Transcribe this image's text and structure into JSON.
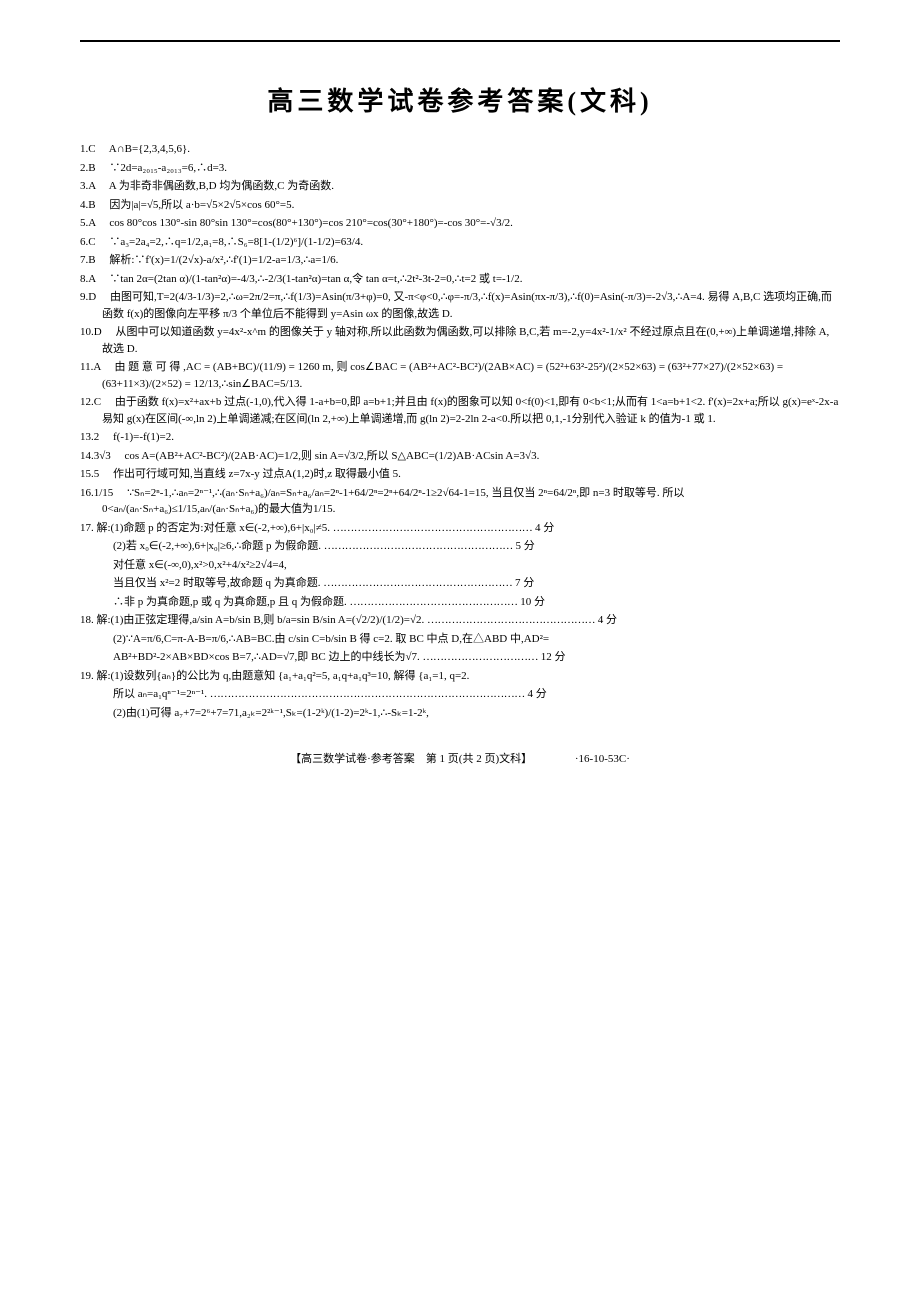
{
  "rule_color": "#000000",
  "title": "高三数学试卷参考答案(文科)",
  "questions": [
    {
      "n": "1.C",
      "body": "A∩B={2,3,4,5,6}."
    },
    {
      "n": "2.B",
      "body": "∵2d=a₂₀₁₅-a₂₀₁₃=6,∴d=3."
    },
    {
      "n": "3.A",
      "body": "A 为非奇非偶函数,B,D 均为偶函数,C 为奇函数."
    },
    {
      "n": "4.B",
      "body": "因为|a|=√5,所以 a·b=√5×2√5×cos 60°=5."
    },
    {
      "n": "5.A",
      "body": "cos 80°cos 130°-sin 80°sin 130°=cos(80°+130°)=cos 210°=cos(30°+180°)=-cos 30°=-√3/2."
    },
    {
      "n": "6.C",
      "body": "∵a₃=2a₄=2,∴q=1/2,a₁=8,∴S₆=8[1-(1/2)⁶]/(1-1/2)=63/4."
    },
    {
      "n": "7.B",
      "body": "解析:∵f'(x)=1/(2√x)-a/x²,∴f'(1)=1/2-a=1/3,∴a=1/6."
    },
    {
      "n": "8.A",
      "body": "∵tan 2α=(2tan α)/(1-tan²α)=-4/3,∴-2/3(1-tan²α)=tan α,令 tan α=t,∴2t²-3t-2=0,∴t=2 或 t=-1/2."
    },
    {
      "n": "9.D",
      "body": "由图可知,T=2(4/3-1/3)=2,∴ω=2π/2=π,∴f(1/3)=Asin(π/3+φ)=0, 又-π<φ<0,∴φ=-π/3,∴f(x)=Asin(πx-π/3),∴f(0)=Asin(-π/3)=-2√3,∴A=4. 易得 A,B,C 选项均正确,而函数 f(x)的图像向左平移 π/3 个单位后不能得到 y=Asin ωx 的图像,故选 D."
    },
    {
      "n": "10.D",
      "body": "从图中可以知道函数 y=4x²-x^m 的图像关于 y 轴对称,所以此函数为偶函数,可以排除 B,C,若 m=-2,y=4x²-1/x² 不经过原点且在(0,+∞)上单调递增,排除 A,故选 D."
    },
    {
      "n": "11.A",
      "body": "由 题 意 可 得 ,AC = (AB+BC)/(11/9) = 1260 m, 则 cos∠BAC = (AB²+AC²-BC²)/(2AB×AC) = (52²+63²-25²)/(2×52×63) = (63²+77×27)/(2×52×63) = (63+11×3)/(2×52) = 12/13,∴sin∠BAC=5/13."
    },
    {
      "n": "12.C",
      "body": "由于函数 f(x)=x²+ax+b 过点(-1,0),代入得 1-a+b=0,即 a=b+1;并且由 f(x)的图象可以知 0<f(0)<1,即有 0<b<1;从而有 1<a=b+1<2. f'(x)=2x+a;所以 g(x)=eˣ-2x-a 易知 g(x)在区间(-∞,ln 2)上单调递减;在区间(ln 2,+∞)上单调递增,而 g(ln 2)=2-2ln 2-a<0.所以把 0,1,-1分别代入验证 k 的值为-1 或 1."
    },
    {
      "n": "13.2",
      "body": "f(-1)=-f(1)=2."
    },
    {
      "n": "14.3√3",
      "body": "cos A=(AB²+AC²-BC²)/(2AB·AC)=1/2,则 sin A=√3/2,所以 S△ABC=(1/2)AB·ACsin A=3√3."
    },
    {
      "n": "15.5",
      "body": "作出可行域可知,当直线 z=7x-y 过点A(1,2)时,z 取得最小值 5."
    },
    {
      "n": "16.1/15",
      "body": "∵Sₙ=2ⁿ-1,∴aₙ=2ⁿ⁻¹,∴(aₙ·Sₙ+a₆)/aₙ=Sₙ+a₆/aₙ=2ⁿ-1+64/2ⁿ=2ⁿ+64/2ⁿ-1≥2√64-1=15, 当且仅当 2ⁿ=64/2ⁿ,即 n=3 时取等号. 所以 0<aₙ/(aₙ·Sₙ+a₆)≤1/15,aₙ/(aₙ·Sₙ+a₆)的最大值为1/15."
    }
  ],
  "q17": {
    "n": "17.",
    "head": "解:(1)命题 p 的否定为:对任意 x∈(-2,+∞),6+|x₀|≠5.",
    "head_score": "4 分",
    "line2": "(2)若 x₀∈(-2,+∞),6+|x₀|≥6,∴命题 p 为假命题.",
    "line2_score": "5 分",
    "line3": "对任意 x∈(-∞,0),x²>0,x²+4/x²≥2√4=4,",
    "line4": "当且仅当 x²=2 时取等号,故命题 q 为真命题.",
    "line4_score": "7 分",
    "line5": "∴非 p 为真命题,p 或 q 为真命题,p 且 q 为假命题.",
    "line5_score": "10 分"
  },
  "q18": {
    "n": "18.",
    "head": "解:(1)由正弦定理得,a/sin A=b/sin B,则 b/a=sin B/sin A=(√2/2)/(1/2)=√2.",
    "head_score": "4 分",
    "line2": "(2)∵A=π/6,C=π-A-B=π/6,∴AB=BC.由 c/sin C=b/sin B 得 c=2. 取 BC 中点 D,在△ABD 中,AD²=",
    "line3": "AB²+BD²-2×AB×BD×cos B=7,∴AD=√7,即 BC 边上的中线长为√7.",
    "line3_score": "12 分"
  },
  "q19": {
    "n": "19.",
    "head": "解:(1)设数列{aₙ}的公比为 q,由题意知 {a₁+a₁q²=5, a₁q+a₁q³=10, 解得 {a₁=1, q=2.",
    "line2": "所以 aₙ=a₁qⁿ⁻¹=2ⁿ⁻¹.",
    "line2_score": "4 分",
    "line3": "(2)由(1)可得 a₇+7=2⁶+7=71,a₂ₖ=2²ᵏ⁻¹,Sₖ=(1-2ᵏ)/(1-2)=2ᵏ-1,∴-Sₖ=1-2ᵏ,"
  },
  "footer_main": "【高三数学试卷·参考答案　第 1 页(共 2 页)文科】",
  "footer_code": "·16-10-53C·"
}
